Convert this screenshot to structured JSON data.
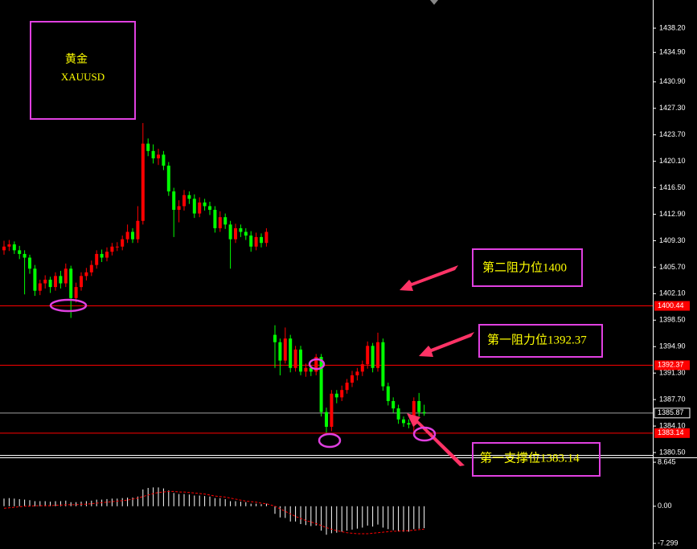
{
  "chart_data": [
    {
      "type": "candlestick",
      "symbol_name": "黄金",
      "symbol": "XAUUSD",
      "annotations": [
        "第二阻力位1400",
        "第一阻力位1392.37",
        "第一支撑位1383.14"
      ],
      "up_color": "#ff0000",
      "down_color": "#00ff00",
      "open": [
        1408.0,
        1408.5,
        1408.8,
        1408.0,
        1407.5,
        1407.0,
        1405.5,
        1402.5,
        1403.5,
        1404.0,
        1403.0,
        1404.5,
        1403.5,
        1405.5,
        1401.5,
        1403.0,
        1404.5,
        1405.0,
        1406.0,
        1407.5,
        1407.0,
        1407.8,
        1408.5,
        1408.5,
        1409.5,
        1410.5,
        1409.5,
        1412.0,
        1422.5,
        1421.5,
        1420.5,
        1421.0,
        1419.5,
        1416.0,
        1413.5,
        1414.0,
        1415.5,
        1415.0,
        1413.0,
        1414.5,
        1414.0,
        1413.5,
        1411.0,
        1412.5,
        1411.5,
        1409.5,
        1411.0,
        1410.5,
        1410.0,
        1408.5,
        1409.8,
        1409.0,
        1396.5,
        1395.5,
        1393.0,
        1396.0,
        1392.0,
        1394.5,
        1391.5,
        1392.0,
        1391.5,
        1393.5,
        1386.0,
        1384.0,
        1388.5,
        1388.0,
        1389.0,
        1390.0,
        1391.0,
        1391.5,
        1392.5,
        1395.0,
        1392.0,
        1395.5,
        1389.5,
        1387.5,
        1386.5,
        1385.0,
        1384.5,
        1384.3,
        1387.5,
        1386.0
      ],
      "high": [
        1409.3,
        1409.4,
        1409.2,
        1408.6,
        1408.0,
        1407.4,
        1406.0,
        1404.0,
        1404.6,
        1404.4,
        1405.0,
        1405.2,
        1406.2,
        1405.9,
        1403.6,
        1405.0,
        1405.6,
        1406.6,
        1408.0,
        1408.1,
        1408.4,
        1409.0,
        1409.1,
        1410.0,
        1411.5,
        1411.0,
        1414.0,
        1425.3,
        1423.2,
        1422.4,
        1421.8,
        1421.5,
        1420.0,
        1416.5,
        1414.8,
        1416.2,
        1416.0,
        1415.6,
        1415.2,
        1415.0,
        1414.6,
        1414.0,
        1413.3,
        1413.0,
        1412.0,
        1411.6,
        1411.5,
        1411.0,
        1410.6,
        1410.4,
        1410.3,
        1411.0,
        1397.8,
        1396.0,
        1397.5,
        1396.5,
        1395.0,
        1395.0,
        1392.6,
        1392.4,
        1393.9,
        1393.9,
        1386.6,
        1389.0,
        1389.0,
        1389.6,
        1390.5,
        1391.6,
        1392.0,
        1393.0,
        1395.6,
        1395.4,
        1396.8,
        1396.0,
        1390.0,
        1388.0,
        1387.0,
        1385.4,
        1385.0,
        1388.0,
        1388.6,
        1387.0
      ],
      "low": [
        1407.4,
        1407.9,
        1407.5,
        1406.8,
        1402.0,
        1404.8,
        1401.8,
        1401.9,
        1402.8,
        1402.2,
        1402.5,
        1402.8,
        1403.0,
        1398.8,
        1400.9,
        1402.5,
        1403.9,
        1404.5,
        1405.5,
        1406.4,
        1406.5,
        1407.3,
        1407.9,
        1408.0,
        1409.0,
        1409.0,
        1409.0,
        1411.5,
        1420.8,
        1419.8,
        1419.6,
        1418.9,
        1415.4,
        1409.8,
        1411.8,
        1413.4,
        1414.3,
        1412.4,
        1412.5,
        1413.4,
        1412.8,
        1410.4,
        1410.5,
        1410.9,
        1405.5,
        1409.0,
        1409.8,
        1409.4,
        1407.8,
        1408.0,
        1408.4,
        1408.5,
        1392.0,
        1391.0,
        1392.6,
        1391.4,
        1391.5,
        1391.0,
        1390.8,
        1390.9,
        1391.0,
        1385.4,
        1383.2,
        1383.4,
        1387.2,
        1387.5,
        1388.5,
        1389.4,
        1390.3,
        1390.9,
        1391.9,
        1391.4,
        1391.5,
        1388.9,
        1386.9,
        1385.9,
        1384.4,
        1384.0,
        1383.8,
        1383.2,
        1385.4,
        1385.5
      ],
      "close": [
        1408.5,
        1408.8,
        1408.0,
        1407.5,
        1407.0,
        1405.5,
        1402.5,
        1403.5,
        1404.0,
        1403.0,
        1404.5,
        1403.5,
        1405.5,
        1401.5,
        1403.0,
        1404.5,
        1405.0,
        1406.0,
        1407.5,
        1407.0,
        1407.8,
        1408.5,
        1408.5,
        1409.5,
        1410.5,
        1409.5,
        1412.0,
        1422.5,
        1421.5,
        1420.5,
        1421.0,
        1419.5,
        1416.0,
        1413.5,
        1414.0,
        1415.5,
        1415.0,
        1413.0,
        1414.5,
        1414.0,
        1413.5,
        1411.0,
        1412.5,
        1411.5,
        1409.5,
        1411.0,
        1410.5,
        1410.0,
        1408.5,
        1409.8,
        1409.0,
        1410.5,
        1395.5,
        1393.0,
        1396.0,
        1392.0,
        1394.5,
        1391.5,
        1392.0,
        1391.5,
        1393.5,
        1386.0,
        1384.0,
        1388.5,
        1388.0,
        1389.0,
        1390.0,
        1391.0,
        1391.5,
        1392.5,
        1395.0,
        1392.0,
        1395.5,
        1389.5,
        1387.5,
        1386.5,
        1385.0,
        1384.5,
        1384.3,
        1387.5,
        1386.0,
        1385.87
      ],
      "levels": [
        {
          "value": 1400.44,
          "color": "#ff0000"
        },
        {
          "value": 1392.37,
          "color": "#ff0000"
        },
        {
          "value": 1385.87,
          "color": "#a0a0a0"
        },
        {
          "value": 1383.14,
          "color": "#ff0000"
        }
      ],
      "ylim": [
        1380.06,
        1442.03
      ],
      "yticks": [
        {
          "value": 1438.2,
          "label": "1438.20"
        },
        {
          "value": 1434.9,
          "label": "1434.90"
        },
        {
          "value": 1430.9,
          "label": "1430.90"
        },
        {
          "value": 1427.3,
          "label": "1427.30"
        },
        {
          "value": 1423.7,
          "label": "1423.70"
        },
        {
          "value": 1420.1,
          "label": "1420.10"
        },
        {
          "value": 1416.5,
          "label": "1416.50"
        },
        {
          "value": 1412.9,
          "label": "1412.90"
        },
        {
          "value": 1409.3,
          "label": "1409.30"
        },
        {
          "value": 1405.7,
          "label": "1405.70"
        },
        {
          "value": 1402.1,
          "label": "1402.10"
        },
        {
          "value": 1398.5,
          "label": "1398.50"
        },
        {
          "value": 1394.9,
          "label": "1394.90"
        },
        {
          "value": 1391.3,
          "label": "1391.30"
        },
        {
          "value": 1387.7,
          "label": "1387.70"
        },
        {
          "value": 1384.1,
          "label": "1384.10"
        },
        {
          "value": 1380.5,
          "label": "1380.50"
        }
      ]
    },
    {
      "type": "macd",
      "color": "#ffffff",
      "signal_color": "#ff0000",
      "values": [
        1.5,
        1.6,
        1.5,
        1.4,
        1.3,
        1.2,
        1.0,
        1.0,
        1.0,
        0.9,
        1.0,
        1.0,
        1.1,
        0.8,
        0.8,
        0.9,
        1.0,
        1.1,
        1.3,
        1.3,
        1.4,
        1.5,
        1.5,
        1.6,
        1.7,
        1.7,
        1.9,
        3.3,
        3.6,
        3.7,
        3.7,
        3.5,
        3.1,
        2.6,
        2.4,
        2.4,
        2.3,
        2.1,
        2.1,
        2.0,
        1.9,
        1.6,
        1.6,
        1.4,
        1.0,
        1.0,
        0.9,
        0.8,
        0.5,
        0.5,
        0.4,
        0.5,
        -1.5,
        -2.2,
        -2.3,
        -3.0,
        -3.0,
        -3.5,
        -3.7,
        -3.9,
        -3.8,
        -4.8,
        -5.6,
        -5.3,
        -5.2,
        -5.0,
        -4.8,
        -4.6,
        -4.4,
        -4.2,
        -3.8,
        -4.0,
        -3.6,
        -4.2,
        -4.5,
        -4.7,
        -4.9,
        -5.0,
        -5.0,
        -4.5,
        -4.4,
        -4.3
      ],
      "signal": [
        -0.4,
        -0.3,
        -0.2,
        -0.1,
        0,
        0,
        0.1,
        0.1,
        0.1,
        0.1,
        0.2,
        0.2,
        0.3,
        0.3,
        0.3,
        0.4,
        0.4,
        0.5,
        0.6,
        0.7,
        0.8,
        0.9,
        1.0,
        1.1,
        1.2,
        1.4,
        1.6,
        1.9,
        2.2,
        2.5,
        2.7,
        2.8,
        2.9,
        2.9,
        2.8,
        2.8,
        2.7,
        2.6,
        2.5,
        2.4,
        2.2,
        2.0,
        1.9,
        1.8,
        1.6,
        1.4,
        1.2,
        1.0,
        0.9,
        0.8,
        0.6,
        0.5,
        0.0,
        -0.5,
        -1.0,
        -1.5,
        -2.0,
        -2.4,
        -2.8,
        -3.1,
        -3.4,
        -3.8,
        -4.2,
        -4.5,
        -4.8,
        -5.0,
        -5.2,
        -5.3,
        -5.4,
        -5.4,
        -5.4,
        -5.3,
        -5.2,
        -5.1,
        -5.0,
        -4.9,
        -4.9,
        -4.8,
        -4.8,
        -4.7,
        -4.6,
        -4.5
      ],
      "ylim": [
        -8.4,
        9.6
      ],
      "yticks": [
        8.645,
        {
          "value": 0,
          "label": "0.00"
        },
        -7.299
      ]
    }
  ]
}
